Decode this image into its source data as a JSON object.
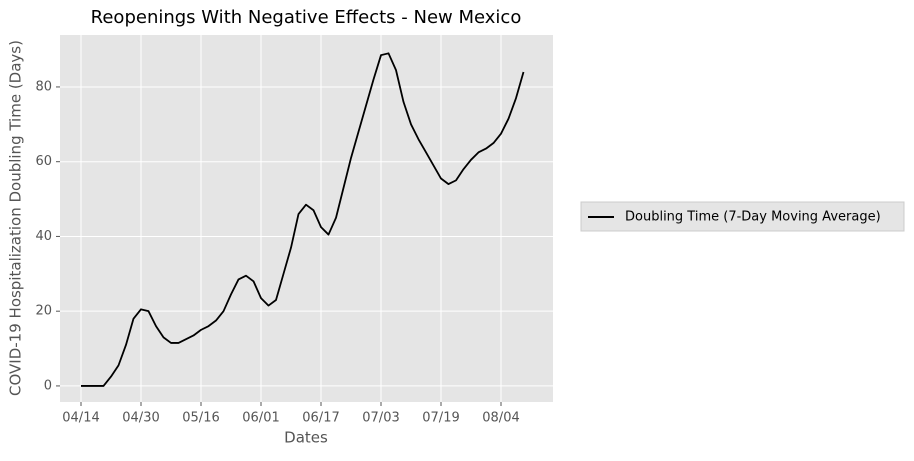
{
  "chart_data": {
    "type": "line",
    "title": "Reopenings With Negative Effects - New Mexico",
    "x_label": "Dates",
    "y_label": "COVID-19 Hospitalization Doubling Time (Days)",
    "x": [
      "04/14",
      "04/16",
      "04/18",
      "04/20",
      "04/22",
      "04/24",
      "04/26",
      "04/28",
      "04/30",
      "05/02",
      "05/04",
      "05/06",
      "05/08",
      "05/10",
      "05/12",
      "05/14",
      "05/16",
      "05/18",
      "05/20",
      "05/22",
      "05/24",
      "05/26",
      "05/28",
      "05/30",
      "06/01",
      "06/03",
      "06/05",
      "06/07",
      "06/09",
      "06/11",
      "06/13",
      "06/15",
      "06/17",
      "06/19",
      "06/21",
      "06/23",
      "06/25",
      "06/27",
      "06/29",
      "07/01",
      "07/03",
      "07/05",
      "07/07",
      "07/09",
      "07/11",
      "07/13",
      "07/15",
      "07/17",
      "07/19",
      "07/21",
      "07/23",
      "07/25",
      "07/27",
      "07/29",
      "07/31",
      "08/02",
      "08/04",
      "08/06",
      "08/08",
      "08/10"
    ],
    "series": [
      {
        "name": "Doubling Time (7-Day Moving Average)",
        "color": "#000000",
        "values": [
          0,
          0,
          0,
          0,
          2.5,
          5.5,
          11,
          18,
          20.5,
          20,
          16,
          13,
          11.5,
          11.5,
          12.5,
          13.5,
          15,
          16,
          17.5,
          20,
          24.5,
          28.5,
          29.5,
          28,
          23.5,
          21.5,
          23,
          30,
          37,
          46,
          48.5,
          47,
          42.5,
          40.5,
          45,
          53,
          61,
          68,
          75,
          82,
          88.5,
          89,
          84.5,
          76,
          70,
          66,
          62.5,
          59,
          55.5,
          54,
          55,
          58,
          60.5,
          62.5,
          63.5,
          65,
          67.5,
          71.5,
          77,
          84
        ]
      }
    ],
    "xticks": [
      "04/14",
      "04/30",
      "05/16",
      "06/01",
      "06/17",
      "07/03",
      "07/19",
      "08/04"
    ],
    "ylim": [
      -4.3,
      93.9
    ],
    "yticks": [
      0,
      20,
      40,
      60,
      80
    ],
    "grid": true,
    "legend": "right"
  }
}
